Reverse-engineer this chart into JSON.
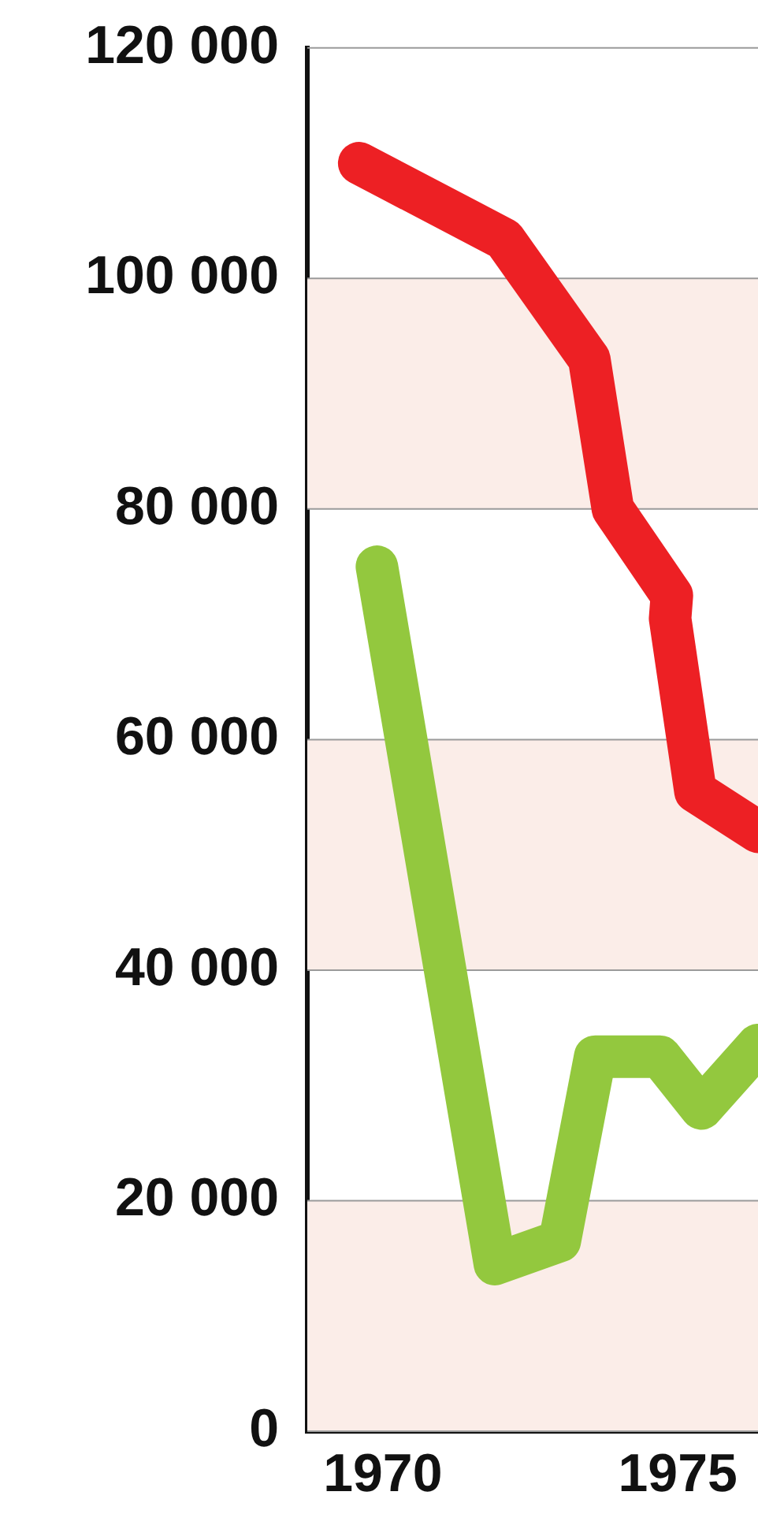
{
  "chart_data": {
    "type": "line",
    "xlim": [
      1968.72,
      1976.36
    ],
    "xticks": [
      1970,
      1975
    ],
    "ylim": [
      0,
      120000
    ],
    "yticks": [
      {
        "value": 0,
        "label": "0"
      },
      {
        "value": 20000,
        "label": "20 000"
      },
      {
        "value": 40000,
        "label": "40 000"
      },
      {
        "value": 60000,
        "label": "60 000"
      },
      {
        "value": 80000,
        "label": "80 000"
      },
      {
        "value": 100000,
        "label": "100 000"
      },
      {
        "value": 120000,
        "label": "120 000"
      }
    ],
    "grid": "y",
    "legend": false,
    "marker": "none",
    "line_style": "solid",
    "bands": [
      {
        "axis": "y",
        "from": 0,
        "to": 20000,
        "color": "#fbede8"
      },
      {
        "axis": "y",
        "from": 40000,
        "to": 60000,
        "color": "#fbede8"
      },
      {
        "axis": "y",
        "from": 80000,
        "to": 100000,
        "color": "#fbede8"
      }
    ],
    "series": [
      {
        "color": "#ed2024",
        "x": [
          1969.6,
          1972.06,
          1973.5,
          1973.9,
          1974.9,
          1974.87,
          1975.3,
          1976.36
        ],
        "values": [
          110000,
          103400,
          93000,
          80000,
          72500,
          70500,
          55500,
          52000
        ]
      },
      {
        "color": "#93c83e",
        "x": [
          1969.9,
          1971.9,
          1973.0,
          1973.6,
          1974.7,
          1975.4,
          1976.36
        ],
        "values": [
          75000,
          14500,
          16500,
          32500,
          32500,
          28000,
          33500
        ]
      }
    ]
  }
}
